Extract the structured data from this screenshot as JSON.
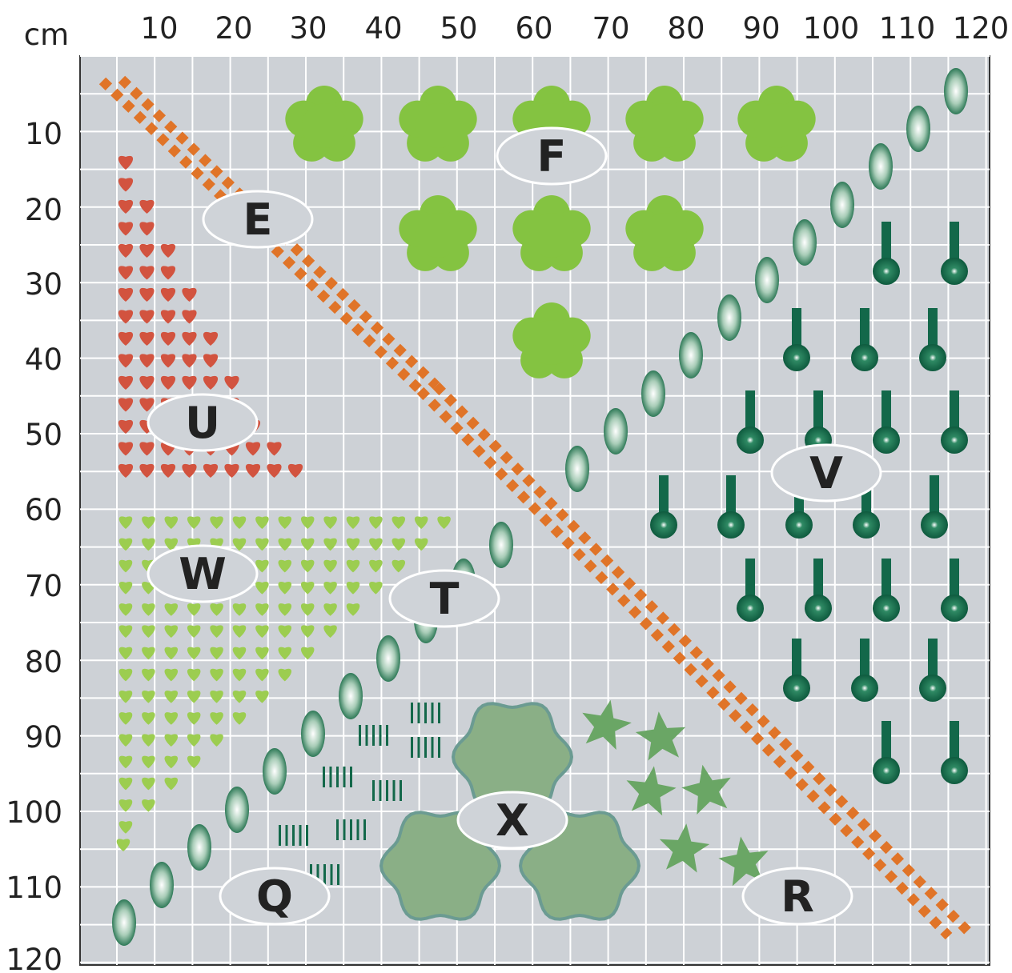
{
  "unit_label": "cm",
  "x_ticks": [
    "10",
    "20",
    "30",
    "40",
    "50",
    "60",
    "70",
    "80",
    "90",
    "100",
    "110",
    "120"
  ],
  "y_ticks": [
    "10",
    "20",
    "30",
    "40",
    "50",
    "60",
    "70",
    "80",
    "90",
    "100",
    "110",
    "120"
  ],
  "colors": {
    "background": "#cdd1d6",
    "grid": "#ffffff",
    "fence": "#e07428",
    "shrub": "#84c341",
    "red_plant": "#d2533f",
    "green_plant": "#9ccd50",
    "dark_plant": "#13684a",
    "pod": "#4f9a77",
    "star": "#6aa665",
    "big_bush": "#8aaf86",
    "label_fill": "#cfd3d8"
  },
  "icons": {
    "shrub": "flower-shrub-icon",
    "red_plant": "red-heart-plant-icon",
    "green_plant": "green-heart-plant-icon",
    "dark_plant": "pin-plant-icon",
    "pod": "pod-plant-icon",
    "star": "star-plant-icon",
    "big_bush": "large-bush-icon",
    "seedling": "seedling-rows-icon"
  },
  "regions": [
    {
      "id": "E",
      "label": "E"
    },
    {
      "id": "F",
      "label": "F"
    },
    {
      "id": "U",
      "label": "U"
    },
    {
      "id": "V",
      "label": "V"
    },
    {
      "id": "W",
      "label": "W"
    },
    {
      "id": "T",
      "label": "T"
    },
    {
      "id": "X",
      "label": "X"
    },
    {
      "id": "Q",
      "label": "Q"
    },
    {
      "id": "R",
      "label": "R"
    }
  ]
}
